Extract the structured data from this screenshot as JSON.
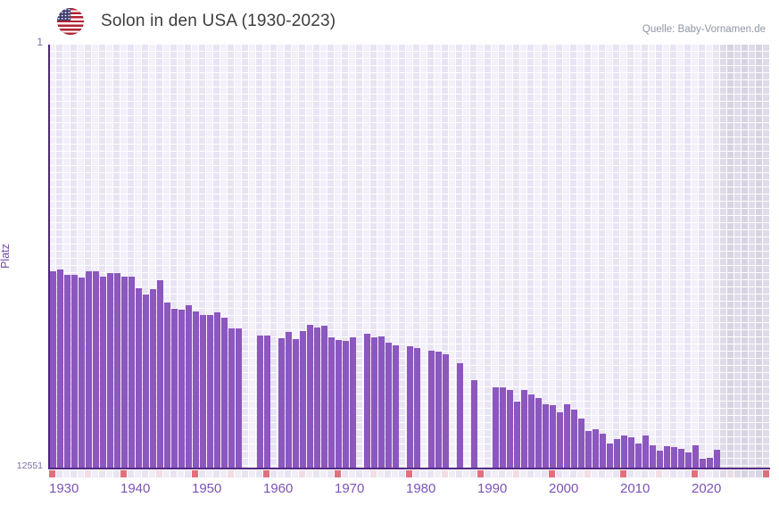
{
  "header": {
    "title": "Solon in den USA (1930-2023)",
    "flag": "us-flag-icon",
    "source_label": "Quelle: Baby-Vornamen.de"
  },
  "chart_data": {
    "type": "bar",
    "title": "Solon in den USA (1930-2023)",
    "xlabel": "",
    "ylabel": "Platz",
    "y_axis": {
      "top_tick_label": "1",
      "bottom_tick_label": "12551",
      "min": 1,
      "max": 12551,
      "inverted": true,
      "note": "rank 1 is best (top), bars rise from bottom; taller bar = better rank"
    },
    "x_axis": {
      "first_data_year": 1930,
      "last_data_year": 2023,
      "axis_end_year": 2030,
      "tick_labels": [
        "1930",
        "1940",
        "1950",
        "1960",
        "1970",
        "1980",
        "1990",
        "2000",
        "2010",
        "2020"
      ],
      "future_region_start_year": 2024
    },
    "grid": true,
    "legend": false,
    "series": [
      {
        "name": "Platz von Solon in den USA",
        "points": [
          [
            1930,
            6710
          ],
          [
            1931,
            6660
          ],
          [
            1932,
            6820
          ],
          [
            1933,
            6820
          ],
          [
            1934,
            6900
          ],
          [
            1935,
            6710
          ],
          [
            1936,
            6700
          ],
          [
            1937,
            6870
          ],
          [
            1938,
            6765
          ],
          [
            1939,
            6765
          ],
          [
            1940,
            6870
          ],
          [
            1941,
            6870
          ],
          [
            1942,
            7215
          ],
          [
            1943,
            7400
          ],
          [
            1944,
            7240
          ],
          [
            1945,
            6975
          ],
          [
            1946,
            7635
          ],
          [
            1947,
            7820
          ],
          [
            1948,
            7845
          ],
          [
            1949,
            7715
          ],
          [
            1950,
            7900
          ],
          [
            1951,
            8005
          ],
          [
            1952,
            8005
          ],
          [
            1953,
            7925
          ],
          [
            1954,
            8085
          ],
          [
            1955,
            8400
          ],
          [
            1956,
            8400
          ],
          [
            1959,
            8615
          ],
          [
            1960,
            8615
          ],
          [
            1962,
            8695
          ],
          [
            1963,
            8510
          ],
          [
            1964,
            8720
          ],
          [
            1965,
            8480
          ],
          [
            1966,
            8295
          ],
          [
            1967,
            8375
          ],
          [
            1968,
            8325
          ],
          [
            1969,
            8665
          ],
          [
            1970,
            8745
          ],
          [
            1971,
            8770
          ],
          [
            1972,
            8665
          ],
          [
            1974,
            8560
          ],
          [
            1975,
            8665
          ],
          [
            1976,
            8640
          ],
          [
            1977,
            8825
          ],
          [
            1978,
            8905
          ],
          [
            1980,
            8930
          ],
          [
            1981,
            8985
          ],
          [
            1983,
            9060
          ],
          [
            1984,
            9090
          ],
          [
            1985,
            9170
          ],
          [
            1987,
            9430
          ],
          [
            1989,
            9935
          ],
          [
            1992,
            10145
          ],
          [
            1993,
            10145
          ],
          [
            1994,
            10225
          ],
          [
            1995,
            10570
          ],
          [
            1996,
            10225
          ],
          [
            1997,
            10355
          ],
          [
            1998,
            10465
          ],
          [
            1999,
            10650
          ],
          [
            2000,
            10675
          ],
          [
            2001,
            10885
          ],
          [
            2002,
            10650
          ],
          [
            2003,
            10805
          ],
          [
            2004,
            11070
          ],
          [
            2005,
            11440
          ],
          [
            2006,
            11385
          ],
          [
            2007,
            11520
          ],
          [
            2008,
            11810
          ],
          [
            2009,
            11680
          ],
          [
            2010,
            11570
          ],
          [
            2011,
            11625
          ],
          [
            2012,
            11810
          ],
          [
            2013,
            11570
          ],
          [
            2014,
            11865
          ],
          [
            2015,
            12020
          ],
          [
            2016,
            11890
          ],
          [
            2017,
            11920
          ],
          [
            2018,
            11970
          ],
          [
            2019,
            12075
          ],
          [
            2020,
            11865
          ],
          [
            2021,
            12260
          ],
          [
            2022,
            12230
          ],
          [
            2023,
            11995
          ]
        ]
      }
    ],
    "missing_years": [
      1957,
      1958,
      1961,
      1973,
      1979,
      1982,
      1986,
      1988,
      1990,
      1991
    ],
    "colors": {
      "bar": "#8c57be",
      "axis_line": "#552a85",
      "tick_label": "#7c52b5",
      "y_label": "#7e6daa",
      "decade_marker": "#e0707c",
      "half_decade_marker": "#f3dce4",
      "strip_cell_even": "#f0edf6",
      "strip_cell_odd": "#e9e4f1",
      "strip_future_even": "#dfdbe8",
      "strip_future_odd": "#d8d3e2",
      "future_half_decade_marker": "#ecdde4"
    }
  }
}
